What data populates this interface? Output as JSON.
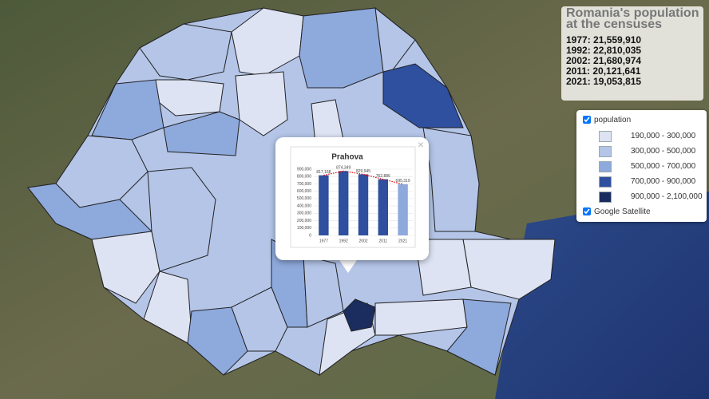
{
  "info_box": {
    "title": "Romania's population at the censuses",
    "censuses": [
      "1977: 21,559,910",
      "1992: 22,810,035",
      "2002: 21,680,974",
      "2011: 20,121,641",
      "2021: 19,053,815"
    ]
  },
  "layers": {
    "population": {
      "name": "population",
      "classes": [
        {
          "label": "190,000 - 300,000",
          "color": "#dde3f3"
        },
        {
          "label": "300,000 - 500,000",
          "color": "#b4c5e8"
        },
        {
          "label": "500,000 - 700,000",
          "color": "#8ea9dc"
        },
        {
          "label": "700,000 - 900,000",
          "color": "#2f4f9f"
        },
        {
          "label": "900,000 - 2,100,000",
          "color": "#1a2d5e"
        }
      ]
    },
    "basemap": {
      "name": "Google Satellite"
    }
  },
  "popup": {
    "close": "×"
  },
  "chart_data": {
    "type": "bar",
    "title": "Prahova",
    "categories": [
      "1977",
      "1992",
      "2002",
      "2011",
      "2021"
    ],
    "values": [
      817168,
      874349,
      829945,
      762886,
      695319
    ],
    "value_labels": [
      "817,168",
      "874,349",
      "829,945",
      "762,886",
      "695,319"
    ],
    "colors": [
      "#2f4f9f",
      "#2f4f9f",
      "#2f4f9f",
      "#2f4f9f",
      "#8ea9dc"
    ],
    "trendline_color": "#e00000",
    "ylim": [
      0,
      900000
    ],
    "yticks": [
      0,
      {
        "value": 100000,
        "label": "100,000"
      },
      {
        "value": 200000,
        "label": "200,000"
      },
      {
        "value": 300000,
        "label": "300,000"
      },
      {
        "value": 400000,
        "label": "400,000"
      },
      {
        "value": 500000,
        "label": "500,000"
      },
      {
        "value": 600000,
        "label": "600,000"
      },
      {
        "value": 700000,
        "label": "700,000"
      },
      {
        "value": 800000,
        "label": "800,000"
      },
      {
        "value": 900000,
        "label": "900,000"
      }
    ],
    "grid": true
  }
}
